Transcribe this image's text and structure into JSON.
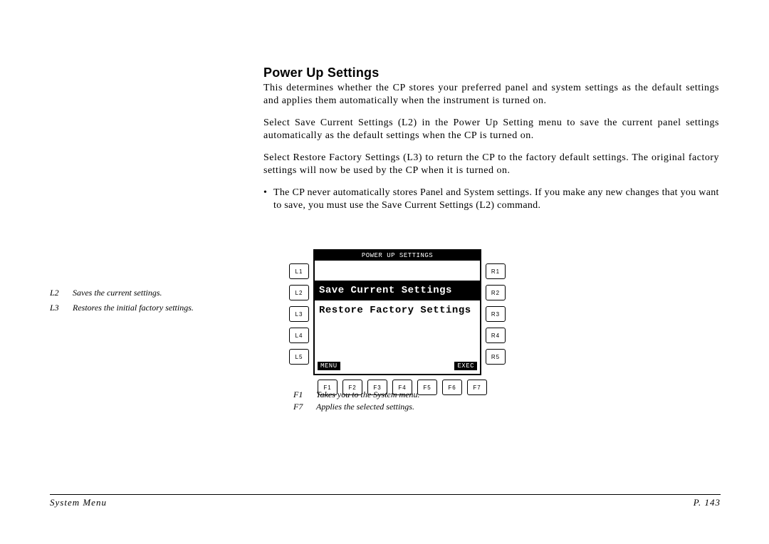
{
  "heading": "Power Up Settings",
  "para1": "This determines whether the CP stores your preferred panel and system settings as the default settings and applies them automatically when the instrument is turned on.",
  "para2": "Select Save Current Settings (L2) in the Power Up Setting menu to save the current panel settings automatically as the default settings when the CP is turned on.",
  "para3": "Select Restore Factory Settings (L3) to return the CP to the factory default settings.  The original factory settings will now be used by the CP when it is turned on.",
  "bullet1": "The CP never automatically stores Panel and System settings.  If you make any new changes that you want to save, you must use the Save Current Settings (L2) command.",
  "side_legend": {
    "l2_key": "L2",
    "l2_text": "Saves the current settings.",
    "l3_key": "L3",
    "l3_text": "Restores the initial factory settings."
  },
  "bottom_legend": {
    "f1_key": "F1",
    "f1_text": "Takes you to the System menu.",
    "f7_key": "F7",
    "f7_text": "Applies the selected settings."
  },
  "panel": {
    "title": "POWER UP SETTINGS",
    "left_keys": [
      "L1",
      "L2",
      "L3",
      "L4",
      "L5"
    ],
    "right_keys": [
      "R1",
      "R2",
      "R3",
      "R4",
      "R5"
    ],
    "fkeys": [
      "F1",
      "F2",
      "F3",
      "F4",
      "F5",
      "F6",
      "F7"
    ],
    "rows": {
      "r2": "Save Current Settings",
      "r3": "Restore Factory Settings"
    },
    "footer_left": "MENU",
    "footer_right": "EXEC"
  },
  "footer": {
    "left": "System Menu",
    "right": "P. 143"
  }
}
